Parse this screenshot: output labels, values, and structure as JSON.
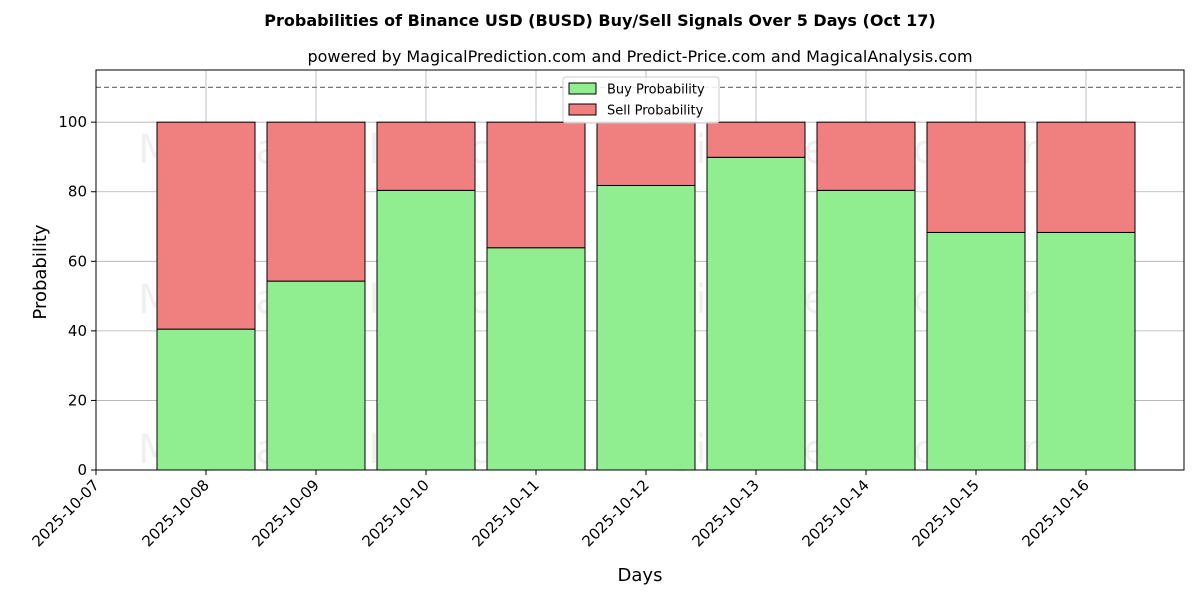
{
  "chart_data": {
    "type": "bar",
    "stacked": true,
    "title": "Probabilities of Binance USD (BUSD) Buy/Sell Signals Over 5 Days (Oct 17)",
    "subtitle": "powered by MagicalPrediction.com and Predict-Price.com and MagicalAnalysis.com",
    "xlabel": "Days",
    "ylabel": "Probability",
    "ylim": [
      0,
      115
    ],
    "y_ticks": [
      0,
      20,
      40,
      60,
      80,
      100
    ],
    "x_ticks": [
      "2025-10-07",
      "2025-10-08",
      "2025-10-09",
      "2025-10-10",
      "2025-10-11",
      "2025-10-12",
      "2025-10-13",
      "2025-10-14",
      "2025-10-15",
      "2025-10-16"
    ],
    "categories": [
      "2025-10-08",
      "2025-10-09",
      "2025-10-10",
      "2025-10-11",
      "2025-10-12",
      "2025-10-13",
      "2025-10-14",
      "2025-10-15",
      "2025-10-16"
    ],
    "series": [
      {
        "name": "Buy Probability",
        "color": "#90ee90",
        "values": [
          40.5,
          54.3,
          80.4,
          63.9,
          81.8,
          89.9,
          80.4,
          68.3,
          68.3
        ]
      },
      {
        "name": "Sell Probability",
        "color": "#f08080",
        "values": [
          59.5,
          45.7,
          19.6,
          36.1,
          18.2,
          10.1,
          19.6,
          31.7,
          31.7
        ]
      }
    ],
    "reference_line": {
      "y": 110,
      "style": "dashed"
    },
    "grid": true,
    "legend_position": "upper center",
    "watermarks": [
      "MagicalAnalysis.com",
      "MagicalPrediction.com",
      "MagicalAnalysis.com",
      "MagicalPrediction.com",
      "MagicalAnalysis.com",
      "MagicalPrediction.com"
    ]
  }
}
